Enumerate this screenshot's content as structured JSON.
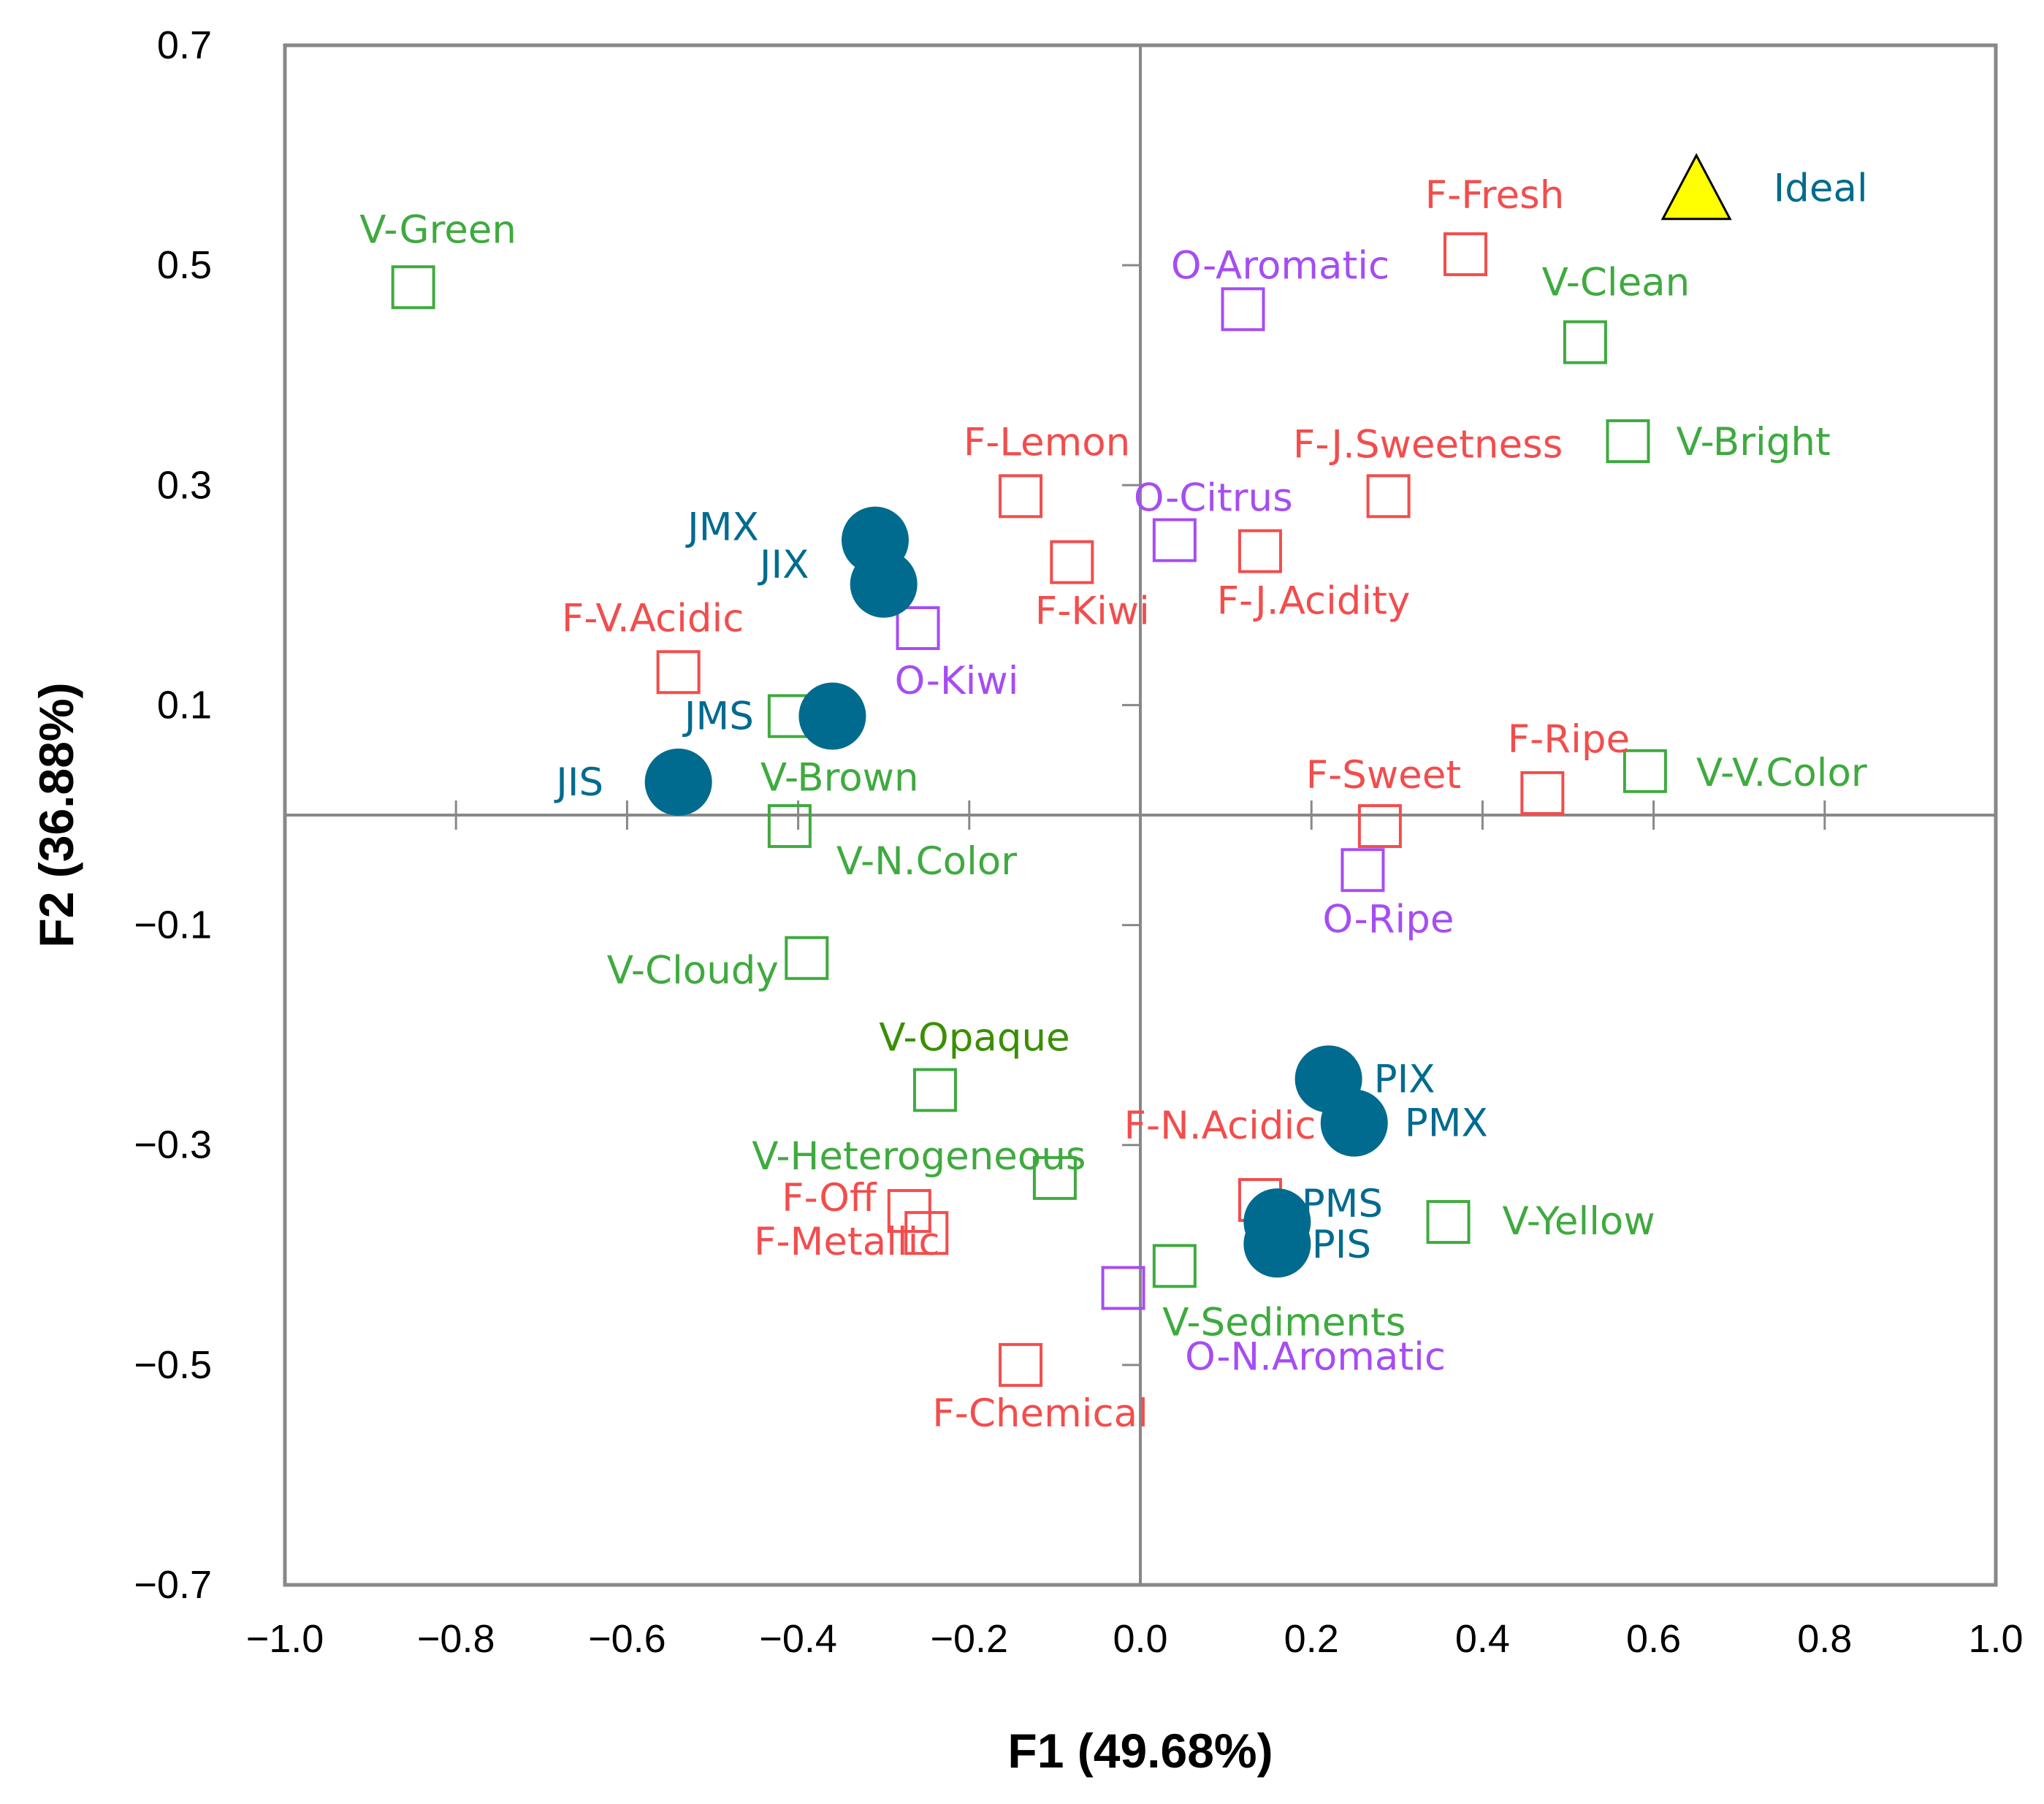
{
  "chart_data": {
    "type": "scatter",
    "title": "",
    "xlabel": "F1 (49.68%)",
    "ylabel": "F2 (36.88%)",
    "xlim": [
      -1.0,
      1.0
    ],
    "ylim": [
      -0.7,
      0.7
    ],
    "x_ticks": [
      "−1.0",
      "−0.8",
      "−0.6",
      "−0.4",
      "−0.2",
      "0.0",
      "0.2",
      "0.4",
      "0.6",
      "0.8",
      "1.0"
    ],
    "y_ticks": [
      "0.7",
      "0.5",
      "0.3",
      "0.1",
      "−0.1",
      "−0.3",
      "−0.5",
      "−0.7"
    ],
    "grid": false,
    "colors": {
      "flavor": "#f24d4d",
      "visual": "#3faa3f",
      "odor": "#a64df2",
      "sample": "#006b8f",
      "ideal_fill": "#ffff00",
      "opaque_label": "#3a8f00"
    },
    "series": [
      {
        "group": "flavor",
        "marker": "open-square",
        "points": [
          {
            "label": "F-Fresh",
            "x": 0.38,
            "y": 0.51
          },
          {
            "label": "F-J.Sweetness",
            "x": 0.29,
            "y": 0.29
          },
          {
            "label": "F-Lemon",
            "x": -0.14,
            "y": 0.29
          },
          {
            "label": "F-Kiwi",
            "x": -0.08,
            "y": 0.23
          },
          {
            "label": "F-J.Acidity",
            "x": 0.14,
            "y": 0.24
          },
          {
            "label": "F-V.Acidic",
            "x": -0.54,
            "y": 0.13
          },
          {
            "label": "F-Ripe",
            "x": 0.47,
            "y": 0.02
          },
          {
            "label": "F-Sweet",
            "x": 0.28,
            "y": -0.01
          },
          {
            "label": "F-N.Acidic",
            "x": 0.14,
            "y": -0.35
          },
          {
            "label": "F-Off",
            "x": -0.27,
            "y": -0.36
          },
          {
            "label": "F-Metallic",
            "x": -0.25,
            "y": -0.38
          },
          {
            "label": "F-Chemical",
            "x": -0.14,
            "y": -0.5
          }
        ]
      },
      {
        "group": "visual",
        "marker": "open-square",
        "points": [
          {
            "label": "V-Green",
            "x": -0.85,
            "y": 0.48
          },
          {
            "label": "V-Clean",
            "x": 0.52,
            "y": 0.43
          },
          {
            "label": "V-Bright",
            "x": 0.57,
            "y": 0.34
          },
          {
            "label": "V-Brown",
            "x": -0.41,
            "y": 0.09
          },
          {
            "label": "V-N.Color",
            "x": -0.41,
            "y": -0.01
          },
          {
            "label": "V-V.Color",
            "x": 0.59,
            "y": 0.04
          },
          {
            "label": "V-Cloudy",
            "x": -0.39,
            "y": -0.13
          },
          {
            "label": "V-Opaque",
            "x": -0.24,
            "y": -0.25
          },
          {
            "label": "V-Heterogeneous",
            "x": -0.1,
            "y": -0.33
          },
          {
            "label": "V-Yellow",
            "x": 0.36,
            "y": -0.37
          },
          {
            "label": "V-Sediments",
            "x": 0.04,
            "y": -0.41
          }
        ]
      },
      {
        "group": "odor",
        "marker": "open-square",
        "points": [
          {
            "label": "O-Aromatic",
            "x": 0.12,
            "y": 0.46
          },
          {
            "label": "O-Citrus",
            "x": 0.04,
            "y": 0.25
          },
          {
            "label": "O-Kiwi",
            "x": -0.26,
            "y": 0.17
          },
          {
            "label": "O-Ripe",
            "x": 0.26,
            "y": -0.05
          },
          {
            "label": "O-N.Aromatic",
            "x": -0.02,
            "y": -0.43
          }
        ]
      },
      {
        "group": "sample",
        "marker": "filled-circle",
        "points": [
          {
            "label": "JMX",
            "x": -0.31,
            "y": 0.25
          },
          {
            "label": "JIX",
            "x": -0.3,
            "y": 0.21
          },
          {
            "label": "JMS",
            "x": -0.36,
            "y": 0.09
          },
          {
            "label": "JIS",
            "x": -0.54,
            "y": 0.03
          },
          {
            "label": "PIX",
            "x": 0.22,
            "y": -0.24
          },
          {
            "label": "PMX",
            "x": 0.25,
            "y": -0.28
          },
          {
            "label": "PMS",
            "x": 0.16,
            "y": -0.37
          },
          {
            "label": "PIS",
            "x": 0.16,
            "y": -0.39
          }
        ]
      },
      {
        "group": "ideal",
        "marker": "triangle",
        "points": [
          {
            "label": "Ideal",
            "x": 0.65,
            "y": 0.57
          }
        ]
      }
    ]
  }
}
